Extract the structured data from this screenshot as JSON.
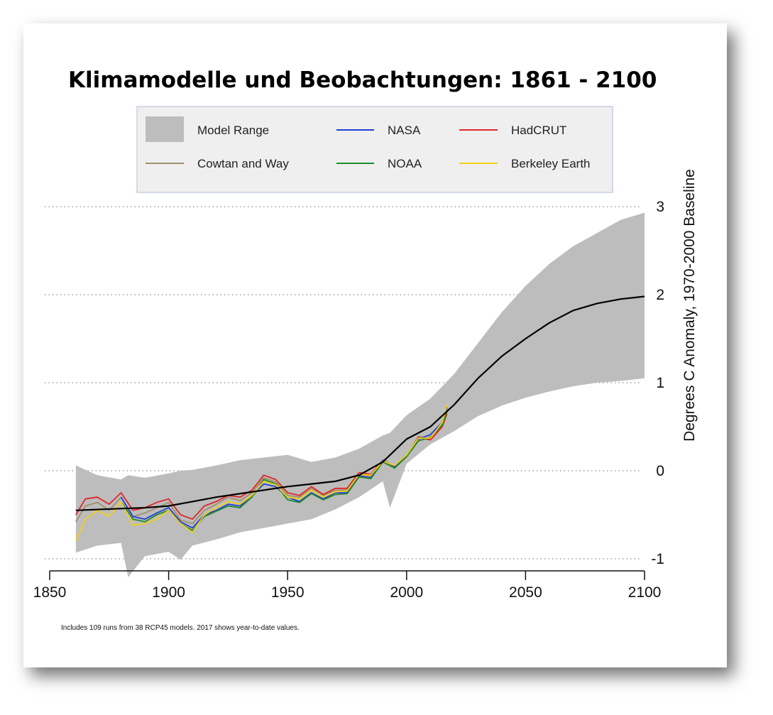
{
  "chart_data": {
    "type": "line",
    "title": "Klimamodelle und Beobachtungen: 1861 - 2100",
    "ylabel": "Degrees C Anomaly, 1970-2000 Baseline",
    "xlabel": "",
    "note": "Includes 109 runs from 38 RCP45 models. 2017 shows year-to-date values.",
    "xlim": [
      1850,
      2100
    ],
    "ylim": [
      -1.2,
      3.1
    ],
    "x_ticks": [
      1850,
      1900,
      1950,
      2000,
      2050,
      2100
    ],
    "y_ticks": [
      3,
      2,
      1,
      0,
      -1
    ],
    "y_axis_side": "right",
    "grid": "dotted horizontal",
    "legend": {
      "placement": "top",
      "entries": [
        {
          "label": "Model Range",
          "color": "#bdbdbd",
          "kind": "patch"
        },
        {
          "label": "NASA",
          "color": "#1f3fd6",
          "kind": "line"
        },
        {
          "label": "HadCRUT",
          "color": "#e0262a",
          "kind": "line"
        },
        {
          "label": "Cowtan and Way",
          "color": "#a08f6c",
          "kind": "line"
        },
        {
          "label": "NOAA",
          "color": "#1f8a2a",
          "kind": "line"
        },
        {
          "label": "Berkeley Earth",
          "color": "#f2cf1a",
          "kind": "line"
        }
      ]
    },
    "model_range": {
      "name": "Model Range",
      "color": "#bdbdbd",
      "x": [
        1861,
        1870,
        1880,
        1883,
        1890,
        1900,
        1905,
        1910,
        1920,
        1930,
        1940,
        1950,
        1960,
        1970,
        1980,
        1990,
        1993,
        2000,
        2010,
        2020,
        2030,
        2040,
        2050,
        2060,
        2070,
        2080,
        2090,
        2100
      ],
      "lower": [
        -0.93,
        -0.85,
        -0.82,
        -1.21,
        -0.97,
        -0.92,
        -1.01,
        -0.85,
        -0.78,
        -0.7,
        -0.65,
        -0.6,
        -0.55,
        -0.44,
        -0.3,
        -0.12,
        -0.42,
        0.08,
        0.3,
        0.45,
        0.62,
        0.74,
        0.83,
        0.9,
        0.96,
        1.0,
        1.02,
        1.05
      ],
      "upper": [
        0.06,
        -0.05,
        -0.1,
        -0.05,
        -0.08,
        -0.03,
        0.0,
        0.01,
        0.06,
        0.12,
        0.15,
        0.18,
        0.1,
        0.15,
        0.25,
        0.4,
        0.43,
        0.63,
        0.82,
        1.1,
        1.45,
        1.8,
        2.1,
        2.35,
        2.55,
        2.7,
        2.85,
        2.93
      ]
    },
    "series": [
      {
        "name": "",
        "color": "#000000",
        "x": [
          1861,
          1870,
          1880,
          1890,
          1900,
          1910,
          1920,
          1930,
          1940,
          1950,
          1960,
          1970,
          1980,
          1990,
          2000,
          2010,
          2020,
          2030,
          2040,
          2050,
          2060,
          2070,
          2080,
          2090,
          2100
        ],
        "values": [
          -0.45,
          -0.44,
          -0.43,
          -0.42,
          -0.4,
          -0.35,
          -0.3,
          -0.26,
          -0.22,
          -0.18,
          -0.15,
          -0.12,
          -0.05,
          0.1,
          0.36,
          0.5,
          0.75,
          1.05,
          1.3,
          1.5,
          1.68,
          1.82,
          1.9,
          1.95,
          1.98
        ]
      },
      {
        "name": "NASA",
        "color": "#1f3fd6",
        "x": [
          1880,
          1885,
          1890,
          1895,
          1900,
          1905,
          1910,
          1915,
          1920,
          1925,
          1930,
          1935,
          1940,
          1945,
          1950,
          1955,
          1960,
          1965,
          1970,
          1975,
          1980,
          1985,
          1990,
          1995,
          2000,
          2005,
          2010,
          2015,
          2017
        ],
        "values": [
          -0.3,
          -0.52,
          -0.55,
          -0.48,
          -0.42,
          -0.58,
          -0.65,
          -0.5,
          -0.45,
          -0.38,
          -0.4,
          -0.28,
          -0.15,
          -0.18,
          -0.3,
          -0.35,
          -0.25,
          -0.32,
          -0.25,
          -0.25,
          -0.06,
          -0.08,
          0.12,
          0.05,
          0.18,
          0.36,
          0.41,
          0.55,
          0.72
        ]
      },
      {
        "name": "HadCRUT",
        "color": "#e0262a",
        "x": [
          1861,
          1865,
          1870,
          1875,
          1880,
          1885,
          1890,
          1895,
          1900,
          1905,
          1910,
          1915,
          1920,
          1925,
          1930,
          1935,
          1940,
          1945,
          1950,
          1955,
          1960,
          1965,
          1970,
          1975,
          1980,
          1985,
          1990,
          1995,
          2000,
          2005,
          2010,
          2015,
          2017
        ],
        "values": [
          -0.5,
          -0.32,
          -0.3,
          -0.38,
          -0.25,
          -0.45,
          -0.42,
          -0.36,
          -0.32,
          -0.5,
          -0.55,
          -0.4,
          -0.35,
          -0.28,
          -0.3,
          -0.22,
          -0.05,
          -0.1,
          -0.25,
          -0.28,
          -0.18,
          -0.27,
          -0.2,
          -0.2,
          -0.02,
          -0.04,
          0.12,
          0.05,
          0.16,
          0.38,
          0.35,
          0.5,
          0.65
        ]
      },
      {
        "name": "Cowtan and Way",
        "color": "#a08f6c",
        "x": [
          1861,
          1865,
          1870,
          1875,
          1880,
          1885,
          1890,
          1895,
          1900,
          1905,
          1910,
          1915,
          1920,
          1925,
          1930,
          1935,
          1940,
          1945,
          1950,
          1955,
          1960,
          1965,
          1970,
          1975,
          1980,
          1985,
          1990,
          1995,
          2000,
          2005,
          2010,
          2015,
          2017
        ],
        "values": [
          -0.58,
          -0.4,
          -0.36,
          -0.45,
          -0.3,
          -0.52,
          -0.48,
          -0.42,
          -0.36,
          -0.56,
          -0.6,
          -0.45,
          -0.38,
          -0.3,
          -0.34,
          -0.25,
          -0.08,
          -0.13,
          -0.28,
          -0.3,
          -0.2,
          -0.28,
          -0.22,
          -0.22,
          -0.05,
          -0.06,
          0.1,
          0.04,
          0.17,
          0.39,
          0.36,
          0.52,
          0.68
        ]
      },
      {
        "name": "NOAA",
        "color": "#1f8a2a",
        "x": [
          1880,
          1885,
          1890,
          1895,
          1900,
          1905,
          1910,
          1915,
          1920,
          1925,
          1930,
          1935,
          1940,
          1945,
          1950,
          1955,
          1960,
          1965,
          1970,
          1975,
          1980,
          1985,
          1990,
          1995,
          2000,
          2005,
          2010,
          2015,
          2017
        ],
        "values": [
          -0.35,
          -0.55,
          -0.58,
          -0.5,
          -0.45,
          -0.6,
          -0.68,
          -0.52,
          -0.46,
          -0.4,
          -0.42,
          -0.3,
          -0.1,
          -0.15,
          -0.33,
          -0.36,
          -0.26,
          -0.33,
          -0.27,
          -0.26,
          -0.07,
          -0.09,
          0.1,
          0.03,
          0.16,
          0.34,
          0.38,
          0.52,
          0.68
        ]
      },
      {
        "name": "Berkeley Earth",
        "color": "#f2cf1a",
        "x": [
          1861,
          1865,
          1870,
          1875,
          1880,
          1885,
          1890,
          1895,
          1900,
          1905,
          1910,
          1915,
          1920,
          1925,
          1930,
          1935,
          1940,
          1945,
          1950,
          1955,
          1960,
          1965,
          1970,
          1975,
          1980,
          1985,
          1990,
          1995,
          2000,
          2005,
          2010,
          2015,
          2017
        ],
        "values": [
          -0.8,
          -0.55,
          -0.45,
          -0.52,
          -0.35,
          -0.62,
          -0.6,
          -0.55,
          -0.45,
          -0.6,
          -0.7,
          -0.5,
          -0.42,
          -0.35,
          -0.38,
          -0.28,
          -0.12,
          -0.16,
          -0.3,
          -0.32,
          -0.22,
          -0.3,
          -0.24,
          -0.23,
          -0.04,
          -0.05,
          0.11,
          0.06,
          0.18,
          0.37,
          0.37,
          0.55,
          0.75
        ]
      }
    ]
  }
}
